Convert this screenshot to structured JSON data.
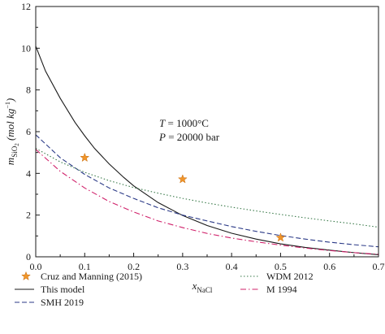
{
  "chart_data": {
    "type": "line",
    "xlim": [
      0.0,
      0.7
    ],
    "ylim": [
      0,
      12
    ],
    "x_ticks": [
      "0.0",
      "0.1",
      "0.2",
      "0.3",
      "0.4",
      "0.5",
      "0.6",
      "0.7"
    ],
    "y_ticks": [
      "0",
      "2",
      "4",
      "6",
      "8",
      "10",
      "12"
    ],
    "xlabel": {
      "main": "x",
      "sub": "NaCl"
    },
    "ylabel": {
      "main": "m",
      "sub": "SiO",
      "sub2": "2",
      "unit_open": " (mol kg",
      "unit_sup": "−1",
      "unit_close": ")"
    },
    "annotation": {
      "line1_var": "T",
      "line1_rest": " = 1000°C",
      "line2_var": "P",
      "line2_rest": " = 20000 bar"
    },
    "series": [
      {
        "name": "Cruz and Manning (2015)",
        "kind": "points",
        "color": "#f0952a",
        "x": [
          0.1,
          0.3,
          0.5
        ],
        "y": [
          4.75,
          3.72,
          0.92
        ]
      },
      {
        "name": "This model",
        "kind": "line",
        "style": "solid",
        "color": "#1a1a1a",
        "x": [
          0.0,
          0.02,
          0.05,
          0.08,
          0.1,
          0.12,
          0.15,
          0.18,
          0.2,
          0.25,
          0.3,
          0.35,
          0.4,
          0.45,
          0.5,
          0.55,
          0.6,
          0.65,
          0.7
        ],
        "y": [
          10.1,
          8.9,
          7.6,
          6.45,
          5.8,
          5.2,
          4.45,
          3.8,
          3.4,
          2.6,
          1.98,
          1.5,
          1.13,
          0.85,
          0.62,
          0.45,
          0.32,
          0.2,
          0.1
        ]
      },
      {
        "name": "SMH 2019",
        "kind": "line",
        "style": "dashed",
        "color": "#2b3a87",
        "x": [
          0.0,
          0.05,
          0.1,
          0.15,
          0.2,
          0.25,
          0.3,
          0.35,
          0.4,
          0.45,
          0.5,
          0.55,
          0.6,
          0.65,
          0.7
        ],
        "y": [
          5.85,
          4.75,
          3.95,
          3.3,
          2.8,
          2.35,
          2.0,
          1.72,
          1.45,
          1.22,
          1.02,
          0.85,
          0.7,
          0.58,
          0.48
        ]
      },
      {
        "name": "WDM 2012",
        "kind": "line",
        "style": "dotted",
        "color": "#3a7a4a",
        "x": [
          0.0,
          0.05,
          0.1,
          0.15,
          0.2,
          0.25,
          0.3,
          0.35,
          0.4,
          0.45,
          0.5,
          0.55,
          0.6,
          0.65,
          0.7
        ],
        "y": [
          5.2,
          4.55,
          4.05,
          3.65,
          3.32,
          3.05,
          2.8,
          2.58,
          2.38,
          2.2,
          2.03,
          1.87,
          1.72,
          1.58,
          1.42
        ]
      },
      {
        "name": "M 1994",
        "kind": "line",
        "style": "dashdot",
        "color": "#d0206a",
        "x": [
          0.0,
          0.05,
          0.1,
          0.15,
          0.2,
          0.25,
          0.3,
          0.35,
          0.4,
          0.45,
          0.5,
          0.55,
          0.6,
          0.65,
          0.7
        ],
        "y": [
          5.15,
          4.1,
          3.3,
          2.65,
          2.15,
          1.72,
          1.4,
          1.12,
          0.9,
          0.72,
          0.56,
          0.42,
          0.3,
          0.2,
          0.12
        ]
      }
    ],
    "legend_placement": "below"
  }
}
